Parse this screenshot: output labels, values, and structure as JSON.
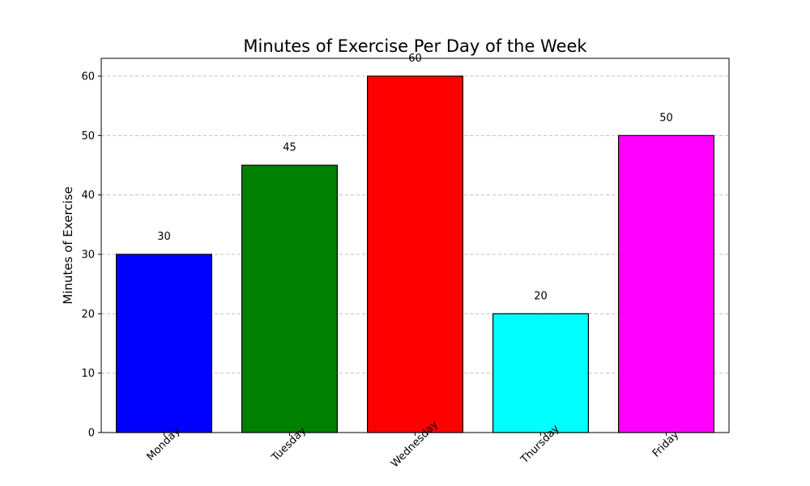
{
  "chart_data": {
    "type": "bar",
    "title": "Minutes of Exercise Per Day of the Week",
    "xlabel": "",
    "ylabel": "Minutes of Exercise",
    "categories": [
      "Monday",
      "Tuesday",
      "Wednesday",
      "Thursday",
      "Friday"
    ],
    "values": [
      30,
      45,
      60,
      20,
      50
    ],
    "colors": [
      "#0000ff",
      "#008000",
      "#ff0000",
      "#00ffff",
      "#ff00ff"
    ],
    "edge_color": "#000000",
    "data_labels": [
      "30",
      "45",
      "60",
      "20",
      "50"
    ],
    "ylim": [
      0,
      63
    ],
    "yticks": [
      0,
      10,
      20,
      30,
      40,
      50,
      60
    ],
    "ytick_labels": [
      "0",
      "10",
      "20",
      "30",
      "40",
      "50",
      "60"
    ],
    "xtick_rotation": 45,
    "grid": {
      "axis": "y",
      "style": "dashed",
      "color": "#c0c0c0"
    }
  }
}
